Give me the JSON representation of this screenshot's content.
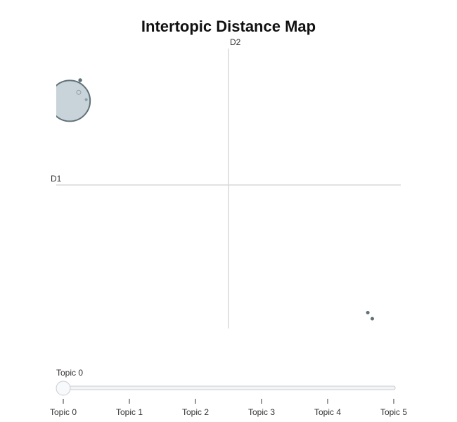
{
  "chart_data": {
    "type": "scatter",
    "title": "Intertopic Distance Map",
    "xlabel": "D1",
    "ylabel": "D2",
    "xlim": [
      -11.5,
      11.5
    ],
    "ylim": [
      -11.5,
      11.5
    ],
    "grid": false,
    "points": [
      {
        "x": -10.6,
        "y": 7.2,
        "size": 29,
        "color": "#c9d3da",
        "stroke": "#5f7278"
      },
      {
        "x": -9.9,
        "y": 8.9,
        "size": 2.2,
        "color": "#5f7278",
        "stroke": "#5f7278"
      },
      {
        "x": -10.0,
        "y": 7.9,
        "size": 3,
        "color": "#c9d3da",
        "stroke": "#8f9ea5"
      },
      {
        "x": -9.5,
        "y": 7.3,
        "size": 1.6,
        "color": "#8f9ea5",
        "stroke": "#8f9ea5"
      },
      {
        "x": 9.3,
        "y": -10.2,
        "size": 2,
        "color": "#5f7278",
        "stroke": "#5f7278"
      },
      {
        "x": 9.6,
        "y": -10.7,
        "size": 2,
        "color": "#5f7278",
        "stroke": "#5f7278"
      }
    ],
    "slider": {
      "current_label": "Topic 0",
      "selected_index": 0,
      "steps": [
        "Topic 0",
        "Topic 1",
        "Topic 2",
        "Topic 3",
        "Topic 4",
        "Topic 5"
      ]
    }
  },
  "colors": {
    "axis_line": "#d9d9d9",
    "bubble_fill": "#c9d3da",
    "bubble_stroke": "#5f7278",
    "slider_track": "#f3f4f6",
    "slider_border": "#c8cdd3",
    "slider_handle": "#f7f9fb"
  }
}
